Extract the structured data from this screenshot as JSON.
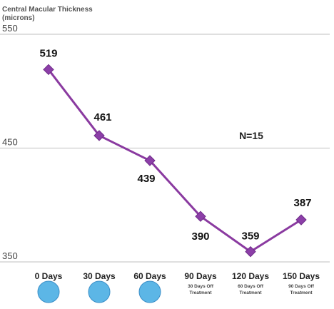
{
  "chart_data": {
    "type": "line",
    "title_line1": "Central Macular Thickness",
    "title_line2": "(microns)",
    "categories": [
      "0 Days",
      "30 Days",
      "60 Days",
      "90 Days",
      "120 Days",
      "150 Days"
    ],
    "subcaptions": [
      [],
      [],
      [],
      [
        "30 Days Off",
        "Treatment"
      ],
      [
        "60 Days Off",
        "Treatment"
      ],
      [
        "90 Days Off",
        "Treatment"
      ]
    ],
    "treatment_markers": [
      true,
      true,
      true,
      false,
      false,
      false
    ],
    "values": [
      519,
      461,
      439,
      390,
      359,
      387
    ],
    "yticks": [
      350,
      450,
      550
    ],
    "ylim": [
      350,
      550
    ],
    "annotation": "N=15",
    "annotation_y": 461,
    "grid": true,
    "colors": {
      "line": "#8a3aa0",
      "marker": "#8c3fa8",
      "grid": "#bfbfbf",
      "circle_fill": "#5cb6e6",
      "circle_stroke": "#3b8fc8"
    }
  }
}
